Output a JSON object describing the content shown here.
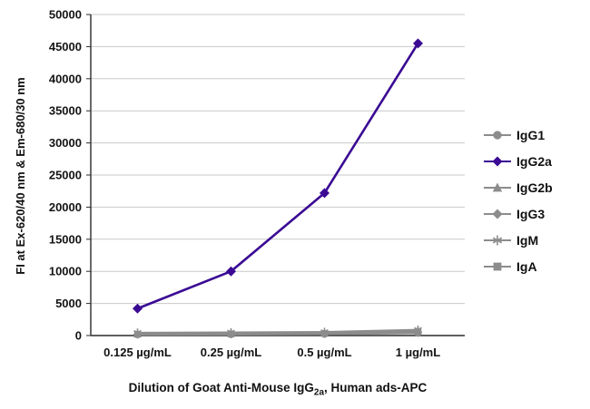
{
  "chart_data": {
    "type": "line",
    "title": "",
    "ylabel": "FI at Ex-620/40 nm & Em-680/30 nm",
    "xlabel_parts": {
      "prefix": "Dilution of Goat Anti-Mouse IgG",
      "sub": "2a",
      "suffix": ", Human ads-APC"
    },
    "categories": [
      "0.125 µg/mL",
      "0.25 µg/mL",
      "0.5 µg/mL",
      "1 µg/mL"
    ],
    "ylim": [
      0,
      50000
    ],
    "ytick_step": 5000,
    "grid": "horizontal",
    "legend_position": "right",
    "style": {
      "grid_color": "#c9c9c9",
      "axis_color": "#2b2b2b",
      "text_color": "#141414",
      "accent_purple": "#3a0a94",
      "series_gray": "#8c8c8c"
    },
    "series": [
      {
        "name": "IgG1",
        "marker": "circle",
        "color": "#8c8c8c",
        "values": [
          120,
          150,
          200,
          350
        ]
      },
      {
        "name": "IgG2a",
        "marker": "diamond",
        "color": "#3a0a94",
        "values": [
          4200,
          10000,
          22200,
          45500
        ]
      },
      {
        "name": "IgG2b",
        "marker": "triangle",
        "color": "#8c8c8c",
        "values": [
          250,
          320,
          400,
          800
        ]
      },
      {
        "name": "IgG3",
        "marker": "diamond",
        "color": "#8c8c8c",
        "values": [
          160,
          200,
          260,
          500
        ]
      },
      {
        "name": "IgM",
        "marker": "asterisk",
        "color": "#8c8c8c",
        "values": [
          450,
          500,
          560,
          900
        ]
      },
      {
        "name": "IgA",
        "marker": "square",
        "color": "#8c8c8c",
        "values": [
          200,
          260,
          330,
          600
        ]
      }
    ]
  }
}
